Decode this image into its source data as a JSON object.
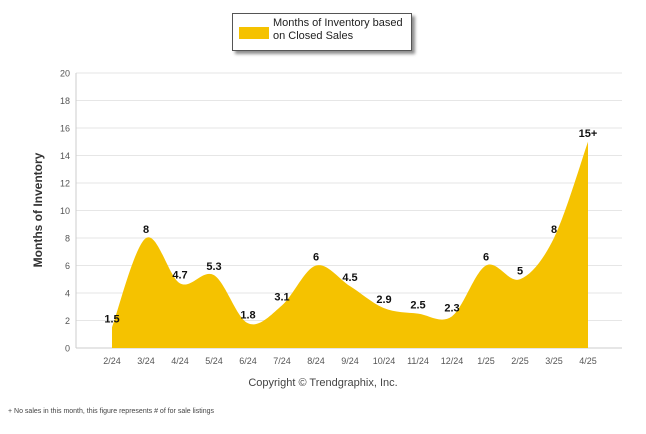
{
  "chart_data": {
    "type": "area",
    "legend": "Months of Inventory based on Closed Sales",
    "ylabel": "Months of Inventory",
    "xlabel": "",
    "ylim": [
      0,
      20
    ],
    "yticks": [
      0,
      2,
      4,
      6,
      8,
      10,
      12,
      14,
      16,
      18,
      20
    ],
    "grid": true,
    "legend_position": "top-center",
    "color": "#f5c200",
    "categories": [
      "2/24",
      "3/24",
      "4/24",
      "5/24",
      "6/24",
      "7/24",
      "8/24",
      "9/24",
      "10/24",
      "11/24",
      "12/24",
      "1/25",
      "2/25",
      "3/25",
      "4/25"
    ],
    "series": [
      {
        "name": "Months of Inventory based on Closed Sales",
        "values": [
          1.5,
          8,
          4.7,
          5.3,
          1.8,
          3.1,
          6,
          4.5,
          2.9,
          2.5,
          2.3,
          6,
          5,
          8,
          15
        ],
        "labels": [
          "1.5",
          "8",
          "4.7",
          "5.3",
          "1.8",
          "3.1",
          "6",
          "4.5",
          "2.9",
          "2.5",
          "2.3",
          "6",
          "5",
          "8",
          "15+"
        ]
      }
    ]
  },
  "copyright": "Copyright © Trendgraphix, Inc.",
  "footnote": "+ No sales in this month, this figure represents # of for sale listings"
}
